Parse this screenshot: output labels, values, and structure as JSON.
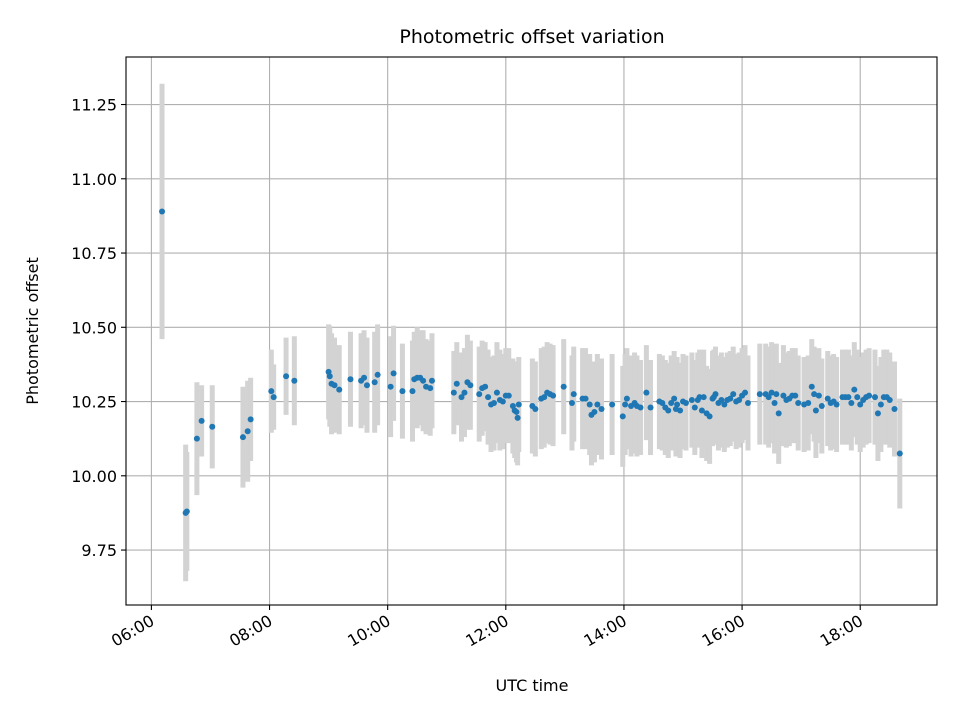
{
  "chart_data": {
    "type": "scatter",
    "title": "Photometric offset variation",
    "xlabel": "UTC time",
    "ylabel": "Photometric offset",
    "x_unit": "hours UTC",
    "xlim": [
      5.57,
      19.3
    ],
    "ylim": [
      9.565,
      11.41
    ],
    "grid": true,
    "x_ticks": [
      {
        "value": 6,
        "label": "06:00"
      },
      {
        "value": 8,
        "label": "08:00"
      },
      {
        "value": 10,
        "label": "10:00"
      },
      {
        "value": 12,
        "label": "12:00"
      },
      {
        "value": 14,
        "label": "14:00"
      },
      {
        "value": 16,
        "label": "16:00"
      },
      {
        "value": 18,
        "label": "18:00"
      }
    ],
    "y_ticks": [
      {
        "value": 9.75,
        "label": "9.75"
      },
      {
        "value": 10.0,
        "label": "10.00"
      },
      {
        "value": 10.25,
        "label": "10.25"
      },
      {
        "value": 10.5,
        "label": "10.50"
      },
      {
        "value": 10.75,
        "label": "10.75"
      },
      {
        "value": 11.0,
        "label": "11.00"
      },
      {
        "value": 11.25,
        "label": "11.25"
      }
    ],
    "point_color": "#1f77b4",
    "errorbar_color": "#d3d3d3",
    "points": [
      [
        6.18,
        10.89,
        0.43
      ],
      [
        6.58,
        9.875,
        0.23
      ],
      [
        6.6,
        9.88,
        0.2
      ],
      [
        6.77,
        10.125,
        0.19
      ],
      [
        6.85,
        10.185,
        0.12
      ],
      [
        7.03,
        10.165,
        0.14
      ],
      [
        7.55,
        10.13,
        0.17
      ],
      [
        7.63,
        10.15,
        0.17
      ],
      [
        7.68,
        10.19,
        0.14
      ],
      [
        8.03,
        10.285,
        0.14
      ],
      [
        8.07,
        10.265,
        0.11
      ],
      [
        8.28,
        10.335,
        0.13
      ],
      [
        8.42,
        10.32,
        0.15
      ],
      [
        9.0,
        10.35,
        0.16
      ],
      [
        9.02,
        10.335,
        0.17
      ],
      [
        9.05,
        10.31,
        0.17
      ],
      [
        9.1,
        10.305,
        0.16
      ],
      [
        9.18,
        10.29,
        0.15
      ],
      [
        9.37,
        10.325,
        0.16
      ],
      [
        9.55,
        10.32,
        0.16
      ],
      [
        9.6,
        10.33,
        0.16
      ],
      [
        9.65,
        10.305,
        0.16
      ],
      [
        9.78,
        10.315,
        0.17
      ],
      [
        9.83,
        10.34,
        0.17
      ],
      [
        10.05,
        10.3,
        0.17
      ],
      [
        10.1,
        10.345,
        0.16
      ],
      [
        10.25,
        10.285,
        0.16
      ],
      [
        10.42,
        10.285,
        0.17
      ],
      [
        10.45,
        10.325,
        0.16
      ],
      [
        10.5,
        10.33,
        0.17
      ],
      [
        10.55,
        10.33,
        0.16
      ],
      [
        10.6,
        10.32,
        0.17
      ],
      [
        10.65,
        10.3,
        0.16
      ],
      [
        10.72,
        10.295,
        0.16
      ],
      [
        10.75,
        10.32,
        0.16
      ],
      [
        11.12,
        10.28,
        0.14
      ],
      [
        11.17,
        10.31,
        0.14
      ],
      [
        11.25,
        10.265,
        0.15
      ],
      [
        11.3,
        10.28,
        0.15
      ],
      [
        11.35,
        10.315,
        0.16
      ],
      [
        11.4,
        10.305,
        0.15
      ],
      [
        11.55,
        10.275,
        0.16
      ],
      [
        11.6,
        10.295,
        0.16
      ],
      [
        11.65,
        10.3,
        0.15
      ],
      [
        11.7,
        10.265,
        0.16
      ],
      [
        11.75,
        10.24,
        0.16
      ],
      [
        11.8,
        10.245,
        0.16
      ],
      [
        11.85,
        10.28,
        0.17
      ],
      [
        11.9,
        10.255,
        0.17
      ],
      [
        11.95,
        10.25,
        0.16
      ],
      [
        12.0,
        10.27,
        0.16
      ],
      [
        12.05,
        10.27,
        0.16
      ],
      [
        12.12,
        10.235,
        0.16
      ],
      [
        12.15,
        10.22,
        0.16
      ],
      [
        12.18,
        10.215,
        0.17
      ],
      [
        12.2,
        10.195,
        0.16
      ],
      [
        12.22,
        10.24,
        0.16
      ],
      [
        12.45,
        10.235,
        0.16
      ],
      [
        12.5,
        10.225,
        0.16
      ],
      [
        12.6,
        10.26,
        0.17
      ],
      [
        12.65,
        10.265,
        0.17
      ],
      [
        12.7,
        10.28,
        0.17
      ],
      [
        12.75,
        10.275,
        0.17
      ],
      [
        12.8,
        10.27,
        0.17
      ],
      [
        12.98,
        10.3,
        0.16
      ],
      [
        13.12,
        10.245,
        0.16
      ],
      [
        13.15,
        10.275,
        0.16
      ],
      [
        13.3,
        10.26,
        0.17
      ],
      [
        13.35,
        10.26,
        0.17
      ],
      [
        13.42,
        10.24,
        0.17
      ],
      [
        13.45,
        10.205,
        0.17
      ],
      [
        13.5,
        10.215,
        0.17
      ],
      [
        13.55,
        10.24,
        0.17
      ],
      [
        13.62,
        10.225,
        0.17
      ],
      [
        13.8,
        10.24,
        0.17
      ],
      [
        13.98,
        10.2,
        0.17
      ],
      [
        14.02,
        10.24,
        0.17
      ],
      [
        14.05,
        10.26,
        0.17
      ],
      [
        14.12,
        10.235,
        0.17
      ],
      [
        14.18,
        10.245,
        0.17
      ],
      [
        14.22,
        10.235,
        0.17
      ],
      [
        14.28,
        10.23,
        0.16
      ],
      [
        14.38,
        10.28,
        0.16
      ],
      [
        14.45,
        10.23,
        0.16
      ],
      [
        14.6,
        10.25,
        0.16
      ],
      [
        14.65,
        10.245,
        0.16
      ],
      [
        14.7,
        10.23,
        0.16
      ],
      [
        14.75,
        10.22,
        0.16
      ],
      [
        14.8,
        10.245,
        0.16
      ],
      [
        14.85,
        10.26,
        0.16
      ],
      [
        14.88,
        10.225,
        0.16
      ],
      [
        14.9,
        10.24,
        0.16
      ],
      [
        14.95,
        10.22,
        0.16
      ],
      [
        15.0,
        10.25,
        0.16
      ],
      [
        15.05,
        10.245,
        0.16
      ],
      [
        15.15,
        10.255,
        0.16
      ],
      [
        15.2,
        10.23,
        0.16
      ],
      [
        15.25,
        10.255,
        0.16
      ],
      [
        15.28,
        10.265,
        0.16
      ],
      [
        15.32,
        10.22,
        0.16
      ],
      [
        15.35,
        10.265,
        0.16
      ],
      [
        15.4,
        10.21,
        0.16
      ],
      [
        15.45,
        10.2,
        0.16
      ],
      [
        15.5,
        10.26,
        0.16
      ],
      [
        15.52,
        10.265,
        0.16
      ],
      [
        15.55,
        10.275,
        0.16
      ],
      [
        15.6,
        10.245,
        0.16
      ],
      [
        15.65,
        10.255,
        0.16
      ],
      [
        15.7,
        10.24,
        0.16
      ],
      [
        15.75,
        10.255,
        0.16
      ],
      [
        15.8,
        10.26,
        0.16
      ],
      [
        15.85,
        10.275,
        0.16
      ],
      [
        15.9,
        10.25,
        0.16
      ],
      [
        15.95,
        10.255,
        0.16
      ],
      [
        16.0,
        10.27,
        0.16
      ],
      [
        16.05,
        10.28,
        0.16
      ],
      [
        16.1,
        10.245,
        0.16
      ],
      [
        16.3,
        10.275,
        0.17
      ],
      [
        16.4,
        10.275,
        0.17
      ],
      [
        16.45,
        10.265,
        0.17
      ],
      [
        16.5,
        10.28,
        0.17
      ],
      [
        16.55,
        10.245,
        0.17
      ],
      [
        16.58,
        10.275,
        0.17
      ],
      [
        16.62,
        10.21,
        0.17
      ],
      [
        16.7,
        10.27,
        0.17
      ],
      [
        16.75,
        10.255,
        0.16
      ],
      [
        16.8,
        10.26,
        0.16
      ],
      [
        16.85,
        10.27,
        0.16
      ],
      [
        16.9,
        10.27,
        0.16
      ],
      [
        16.95,
        10.245,
        0.16
      ],
      [
        17.05,
        10.24,
        0.16
      ],
      [
        17.12,
        10.245,
        0.16
      ],
      [
        17.18,
        10.3,
        0.16
      ],
      [
        17.22,
        10.275,
        0.16
      ],
      [
        17.25,
        10.22,
        0.16
      ],
      [
        17.3,
        10.27,
        0.16
      ],
      [
        17.35,
        10.235,
        0.16
      ],
      [
        17.45,
        10.26,
        0.16
      ],
      [
        17.5,
        10.245,
        0.16
      ],
      [
        17.55,
        10.25,
        0.16
      ],
      [
        17.6,
        10.24,
        0.16
      ],
      [
        17.7,
        10.265,
        0.16
      ],
      [
        17.75,
        10.265,
        0.16
      ],
      [
        17.8,
        10.265,
        0.16
      ],
      [
        17.85,
        10.245,
        0.16
      ],
      [
        17.9,
        10.29,
        0.16
      ],
      [
        17.95,
        10.265,
        0.16
      ],
      [
        18.0,
        10.24,
        0.16
      ],
      [
        18.05,
        10.255,
        0.16
      ],
      [
        18.1,
        10.265,
        0.16
      ],
      [
        18.15,
        10.27,
        0.16
      ],
      [
        18.25,
        10.265,
        0.16
      ],
      [
        18.3,
        10.21,
        0.16
      ],
      [
        18.35,
        10.24,
        0.16
      ],
      [
        18.4,
        10.265,
        0.16
      ],
      [
        18.45,
        10.265,
        0.16
      ],
      [
        18.5,
        10.255,
        0.16
      ],
      [
        18.58,
        10.225,
        0.16
      ],
      [
        18.67,
        10.075,
        0.185
      ]
    ]
  }
}
